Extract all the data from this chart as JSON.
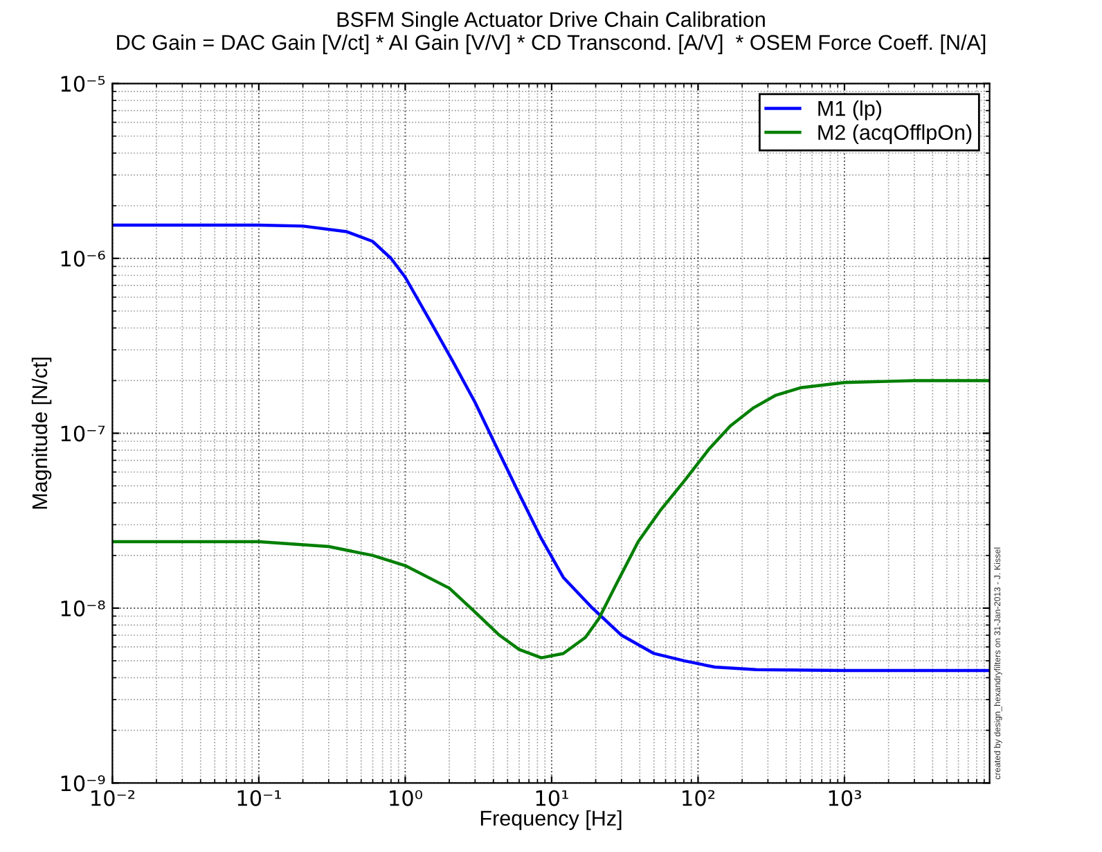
{
  "chart_data": {
    "type": "line",
    "title": "BSFM Single Actuator Drive Chain Calibration",
    "subtitle": "DC Gain = DAC Gain [V/ct] * AI Gain [V/V] * CD Transcond. [A/V]  * OSEM Force Coeff. [N/A]",
    "xlabel": "Frequency [Hz]",
    "ylabel": "Magnitude [N/ct]",
    "annotations": [
      "created by design_hexandryfilters on 31-Jan-2013 - J. Kissel"
    ],
    "log": "xy",
    "grid": true,
    "legend": "top right",
    "line_style": "solid",
    "marker": "none",
    "xlim": [
      0.01,
      9800
    ],
    "ylim": [
      1e-09,
      1e-05
    ],
    "xticks": [
      {
        "value": 0.01,
        "label": "10⁻²"
      },
      {
        "value": 0.1,
        "label": "10⁻¹"
      },
      {
        "value": 1,
        "label": "10⁰"
      },
      {
        "value": 10,
        "label": "10¹"
      },
      {
        "value": 100,
        "label": "10²"
      },
      {
        "value": 1000,
        "label": "10³"
      }
    ],
    "yticks": [
      {
        "value": 1e-09,
        "label": "10⁻⁹"
      },
      {
        "value": 1e-08,
        "label": "10⁻⁸"
      },
      {
        "value": 1e-07,
        "label": "10⁻⁷"
      },
      {
        "value": 1e-06,
        "label": "10⁻⁶"
      },
      {
        "value": 1e-05,
        "label": "10⁻⁵"
      }
    ],
    "series": [
      {
        "name": "M1 (lp)",
        "color": "#0000ff",
        "x": [
          0.01,
          0.1,
          0.2,
          0.4,
          0.6,
          0.8,
          1,
          1.5,
          2.1,
          3,
          4.1,
          6,
          8.5,
          12,
          19,
          30,
          50,
          80,
          130,
          250,
          1000,
          9800
        ],
        "values": [
          1.55e-06,
          1.55e-06,
          1.53e-06,
          1.42e-06,
          1.25e-06,
          1e-06,
          7.8e-07,
          4.3e-07,
          2.6e-07,
          1.5e-07,
          8.7e-08,
          4.5e-08,
          2.5e-08,
          1.5e-08,
          1e-08,
          7e-09,
          5.5e-09,
          5e-09,
          4.6e-09,
          4.45e-09,
          4.4e-09,
          4.4e-09
        ]
      },
      {
        "name": "M2 (acqOfflpOn)",
        "color": "#007f00",
        "x": [
          0.01,
          0.1,
          0.3,
          0.6,
          1,
          2,
          3,
          4.4,
          6,
          8.5,
          12,
          17,
          21,
          28,
          39,
          55,
          80,
          120,
          166,
          240,
          340,
          500,
          1000,
          3000,
          9800
        ],
        "values": [
          2.4e-08,
          2.4e-08,
          2.25e-08,
          2e-08,
          1.75e-08,
          1.3e-08,
          9.5e-09,
          7e-09,
          5.8e-09,
          5.2e-09,
          5.5e-09,
          6.8e-09,
          8.7e-09,
          1.4e-08,
          2.4e-08,
          3.6e-08,
          5.3e-08,
          8.2e-08,
          1.1e-07,
          1.4e-07,
          1.65e-07,
          1.82e-07,
          1.95e-07,
          2e-07,
          2e-07
        ]
      }
    ]
  }
}
